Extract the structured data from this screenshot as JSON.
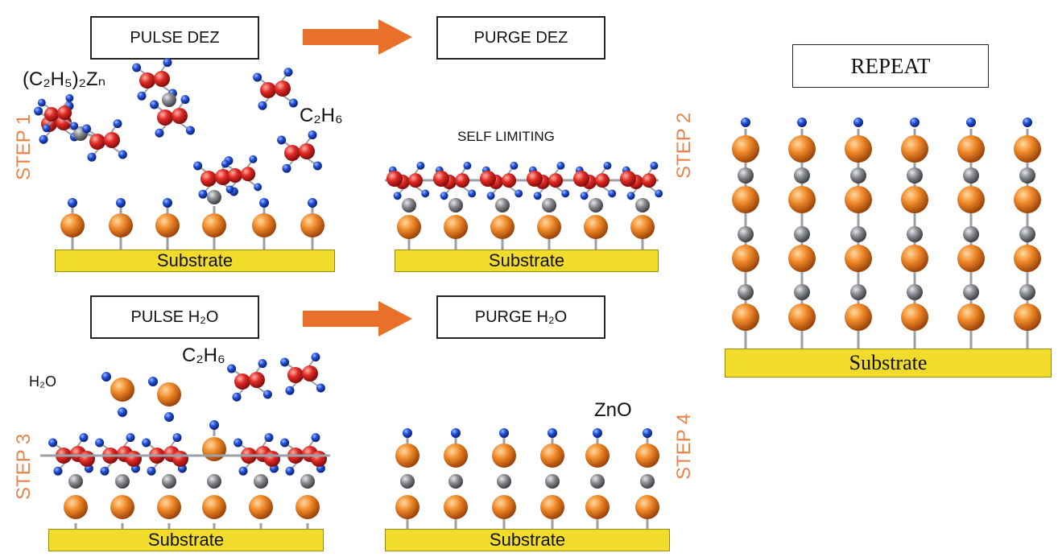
{
  "boxes": {
    "pulse_dez": "PULSE DEZ",
    "purge_dez": "PURGE DEZ",
    "pulse_h2o": "PULSE H₂O",
    "purge_h2o": "PURGE H₂O",
    "repeat": "REPEAT"
  },
  "steps": {
    "step1": "STEP 1",
    "step2": "STEP 2",
    "step3": "STEP 3",
    "step4": "STEP 4"
  },
  "labels": {
    "dez_formula": "(C₂H₅)₂Zₙ",
    "ethane_1": "C₂H₆",
    "ethane_2": "C₂H₆",
    "self_limiting": "SELF LIMITING",
    "water": "H₂O",
    "zno": "ZnO"
  },
  "substrate_label": "Substrate",
  "colors": {
    "arrow": "#e8702a",
    "step_text": "#e8834a",
    "substrate": "#f2dc2b",
    "zinc": "#e07820",
    "oxygen": "#d42a2a",
    "carbon": "#8a8d92",
    "hydrogen": "#1e4fd6"
  }
}
